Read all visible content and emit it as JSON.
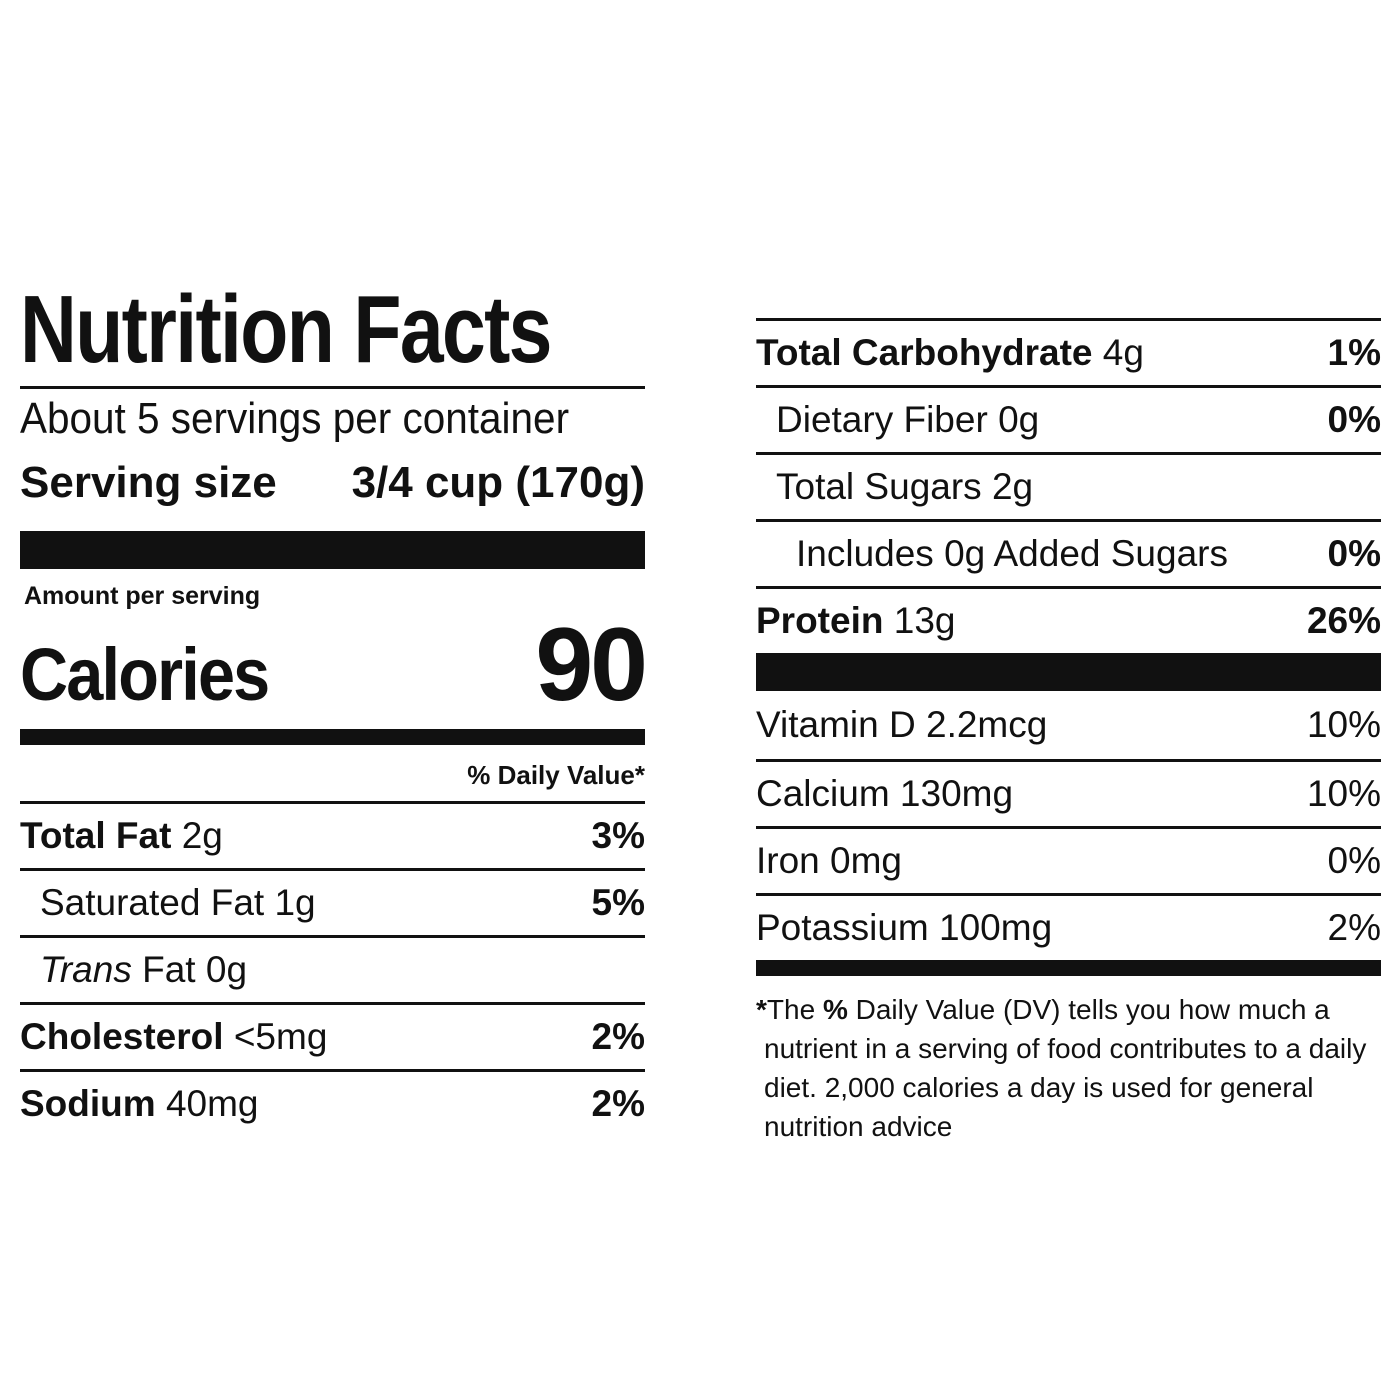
{
  "title": "Nutrition Facts",
  "servings_per_container": "About 5 servings per container",
  "serving_size_label": "Serving size",
  "serving_size_value": "3/4 cup (170g)",
  "amount_per_serving": "Amount per serving",
  "calories_label": "Calories",
  "calories_value": "90",
  "daily_value_header": "% Daily Value*",
  "nutrients": {
    "total_fat": {
      "name": "Total Fat",
      "amount": "2g",
      "dv": "3%"
    },
    "saturated_fat": {
      "name": "Saturated Fat",
      "amount": "1g",
      "dv": "5%"
    },
    "trans_fat": {
      "name_italic": "Trans",
      "name": "Fat",
      "amount": "0g"
    },
    "cholesterol": {
      "name": "Cholesterol",
      "amount": "<5mg",
      "dv": "2%"
    },
    "sodium": {
      "name": "Sodium",
      "amount": "40mg",
      "dv": "2%"
    },
    "total_carbohydrate": {
      "name": "Total Carbohydrate",
      "amount": "4g",
      "dv": "1%"
    },
    "dietary_fiber": {
      "name": "Dietary Fiber",
      "amount": "0g",
      "dv": "0%"
    },
    "total_sugars": {
      "name": "Total Sugars",
      "amount": "2g"
    },
    "added_sugars": {
      "text": "Includes 0g Added Sugars",
      "dv": "0%"
    },
    "protein": {
      "name": "Protein",
      "amount": "13g",
      "dv": "26%"
    }
  },
  "vitamins": [
    {
      "label": "Vitamin D 2.2mcg",
      "dv": "10%"
    },
    {
      "label": "Calcium 130mg",
      "dv": "10%"
    },
    {
      "label": "Iron 0mg",
      "dv": "0%"
    },
    {
      "label": "Potassium 100mg",
      "dv": "2%"
    }
  ],
  "footnote": {
    "star": "*",
    "lead": "The ",
    "pct": "%",
    "rest": " Daily Value (DV) tells you how much a nutrient in a serving of food contributes to a daily diet. 2,000 calories a day is used for general nutrition advice"
  }
}
